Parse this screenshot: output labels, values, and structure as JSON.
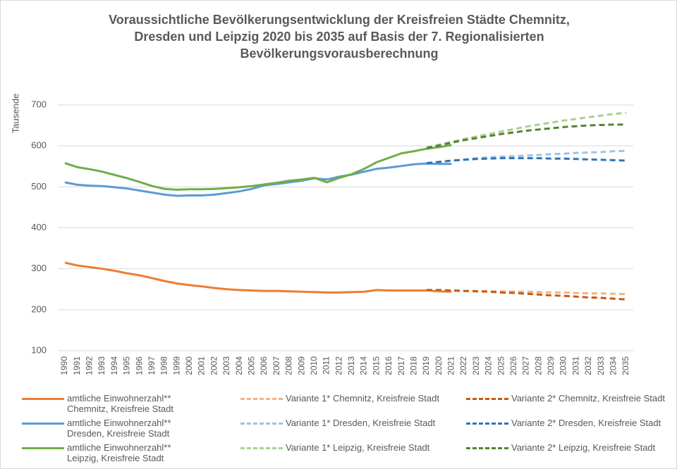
{
  "chart_data": {
    "type": "line",
    "title": [
      "Voraussichtliche Bevölkerungsentwicklung der Kreisfreien Städte Chemnitz,",
      "Dresden und Leipzig 2020 bis 2035 auf Basis der 7. Regionalisierten",
      "Bevölkerungsvorausberechnung"
    ],
    "y_label": "Tausende",
    "categories": [
      "1990",
      "1991",
      "1992",
      "1993",
      "1994",
      "1995",
      "1996",
      "1997",
      "1998",
      "1999",
      "2000",
      "2001",
      "2002",
      "2003",
      "2004",
      "2005",
      "2006",
      "2007",
      "2008",
      "2009",
      "2010",
      "2011",
      "2012",
      "2013",
      "2014",
      "2015",
      "2016",
      "2017",
      "2018",
      "2019",
      "2020",
      "2021",
      "2022",
      "2023",
      "2024",
      "2025",
      "2026",
      "2027",
      "2028",
      "2029",
      "2030",
      "2031",
      "2032",
      "2033",
      "2034",
      "2035"
    ],
    "ylim": [
      100,
      700
    ],
    "yticks": [
      100,
      200,
      300,
      400,
      500,
      600,
      700
    ],
    "grid": true,
    "series": [
      {
        "name": "amtliche Einwohnerzahl** Chemnitz, Kreisfreie Stadt",
        "color": "#ed7d31",
        "style": "solid",
        "values": [
          315,
          308,
          304,
          300,
          295,
          289,
          284,
          277,
          270,
          264,
          260,
          257,
          253,
          250,
          248,
          247,
          246,
          246,
          245,
          244,
          243,
          242,
          242,
          243,
          244,
          248,
          247,
          247,
          247,
          247,
          245,
          244,
          null,
          null,
          null,
          null,
          null,
          null,
          null,
          null,
          null,
          null,
          null,
          null,
          null,
          null
        ]
      },
      {
        "name": "amtliche Einwohnerzahl** Dresden, Kreisfreie Stadt",
        "color": "#5b9bd5",
        "style": "solid",
        "values": [
          511,
          505,
          503,
          502,
          499,
          496,
          491,
          486,
          481,
          478,
          479,
          479,
          481,
          485,
          489,
          495,
          504,
          507,
          511,
          515,
          521,
          518,
          525,
          530,
          537,
          544,
          547,
          551,
          555,
          557,
          556,
          556,
          null,
          null,
          null,
          null,
          null,
          null,
          null,
          null,
          null,
          null,
          null,
          null,
          null,
          null
        ]
      },
      {
        "name": "amtliche Einwohnerzahl** Leipzig, Kreisfreie Stadt",
        "color": "#70ad47",
        "style": "solid",
        "values": [
          558,
          548,
          543,
          537,
          529,
          521,
          512,
          502,
          495,
          493,
          494,
          494,
          495,
          497,
          499,
          502,
          506,
          510,
          515,
          518,
          522,
          511,
          522,
          531,
          544,
          560,
          571,
          582,
          587,
          593,
          597,
          602,
          null,
          null,
          null,
          null,
          null,
          null,
          null,
          null,
          null,
          null,
          null,
          null,
          null,
          null
        ]
      },
      {
        "name": "Variante 1* Chemnitz, Kreisfreie Stadt",
        "color": "#f4b183",
        "style": "dashed",
        "values": [
          null,
          null,
          null,
          null,
          null,
          null,
          null,
          null,
          null,
          null,
          null,
          null,
          null,
          null,
          null,
          null,
          null,
          null,
          null,
          null,
          null,
          null,
          null,
          null,
          null,
          null,
          null,
          null,
          null,
          247,
          247,
          247,
          246,
          246,
          245,
          245,
          244,
          244,
          243,
          242,
          242,
          241,
          240,
          240,
          239,
          238
        ]
      },
      {
        "name": "Variante 1* Dresden, Kreisfreie Stadt",
        "color": "#9dc3e6",
        "style": "dashed",
        "values": [
          null,
          null,
          null,
          null,
          null,
          null,
          null,
          null,
          null,
          null,
          null,
          null,
          null,
          null,
          null,
          null,
          null,
          null,
          null,
          null,
          null,
          null,
          null,
          null,
          null,
          null,
          null,
          null,
          null,
          558,
          561,
          564,
          567,
          570,
          572,
          574,
          575,
          576,
          578,
          580,
          581,
          583,
          584,
          585,
          587,
          588
        ]
      },
      {
        "name": "Variante 1* Leipzig, Kreisfreie Stadt",
        "color": "#a9d18e",
        "style": "dashed",
        "values": [
          null,
          null,
          null,
          null,
          null,
          null,
          null,
          null,
          null,
          null,
          null,
          null,
          null,
          null,
          null,
          null,
          null,
          null,
          null,
          null,
          null,
          null,
          null,
          null,
          null,
          null,
          null,
          null,
          null,
          596,
          603,
          610,
          617,
          623,
          629,
          635,
          641,
          647,
          652,
          657,
          662,
          666,
          670,
          674,
          678,
          681
        ]
      },
      {
        "name": "Variante 2* Chemnitz, Kreisfreie Stadt",
        "color": "#c55a11",
        "style": "dashed",
        "values": [
          null,
          null,
          null,
          null,
          null,
          null,
          null,
          null,
          null,
          null,
          null,
          null,
          null,
          null,
          null,
          null,
          null,
          null,
          null,
          null,
          null,
          null,
          null,
          null,
          null,
          null,
          null,
          null,
          null,
          248,
          248,
          247,
          246,
          245,
          244,
          242,
          241,
          239,
          237,
          235,
          234,
          232,
          230,
          229,
          227,
          225
        ]
      },
      {
        "name": "Variante 2* Dresden, Kreisfreie Stadt",
        "color": "#2e75b6",
        "style": "dashed",
        "values": [
          null,
          null,
          null,
          null,
          null,
          null,
          null,
          null,
          null,
          null,
          null,
          null,
          null,
          null,
          null,
          null,
          null,
          null,
          null,
          null,
          null,
          null,
          null,
          null,
          null,
          null,
          null,
          null,
          null,
          558,
          561,
          564,
          566,
          568,
          569,
          570,
          570,
          570,
          570,
          569,
          569,
          568,
          567,
          566,
          565,
          564
        ]
      },
      {
        "name": "Variante 2* Leipzig, Kreisfreie Stadt",
        "color": "#548235",
        "style": "dashed",
        "values": [
          null,
          null,
          null,
          null,
          null,
          null,
          null,
          null,
          null,
          null,
          null,
          null,
          null,
          null,
          null,
          null,
          null,
          null,
          null,
          null,
          null,
          null,
          null,
          null,
          null,
          null,
          null,
          null,
          null,
          595,
          601,
          608,
          614,
          619,
          624,
          629,
          633,
          637,
          640,
          643,
          646,
          648,
          650,
          651,
          652,
          652
        ]
      }
    ]
  }
}
